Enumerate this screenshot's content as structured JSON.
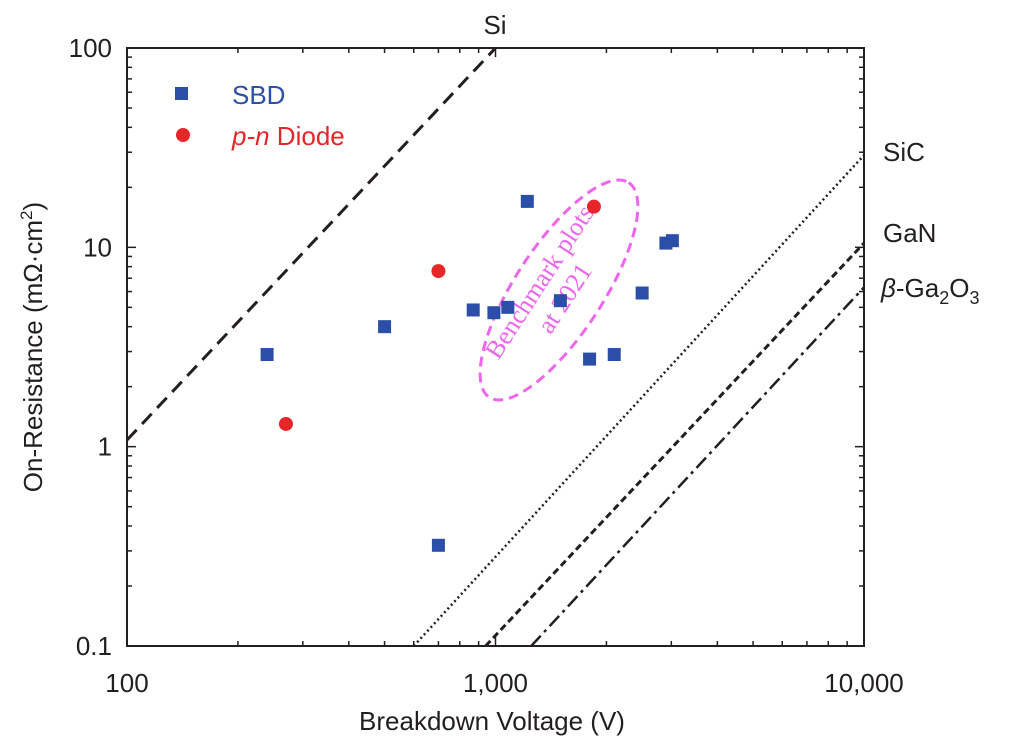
{
  "chart_data": {
    "type": "scatter",
    "xlabel": "Breakdown Voltage (V)",
    "ylabel": "On-Resistance (mΩ·cm²)",
    "ylabel_prefix": "On-Resistance (mΩ·cm",
    "ylabel_sup": "2",
    "ylabel_suffix": ")",
    "xscale": "log",
    "yscale": "log",
    "xlim": [
      100,
      10000
    ],
    "ylim": [
      0.1,
      100
    ],
    "x_ticks": [
      100,
      1000,
      10000
    ],
    "x_tick_labels": [
      "100",
      "1,000",
      "10,000"
    ],
    "y_ticks": [
      0.1,
      1,
      10,
      100
    ],
    "y_tick_labels": [
      "0.1",
      "1",
      "10",
      "100"
    ],
    "legend_position": "top-left",
    "series": [
      {
        "name": "SBD",
        "marker": "square",
        "color": "#2b4fa8",
        "points": [
          {
            "x": 240,
            "y": 2.9
          },
          {
            "x": 500,
            "y": 4.0
          },
          {
            "x": 700,
            "y": 0.32
          },
          {
            "x": 870,
            "y": 4.85
          },
          {
            "x": 990,
            "y": 4.7
          },
          {
            "x": 1080,
            "y": 5.0
          },
          {
            "x": 1220,
            "y": 17.0
          },
          {
            "x": 1500,
            "y": 5.4
          },
          {
            "x": 1800,
            "y": 2.75
          },
          {
            "x": 2100,
            "y": 2.9
          },
          {
            "x": 2500,
            "y": 5.9
          },
          {
            "x": 2900,
            "y": 10.5
          },
          {
            "x": 3020,
            "y": 10.8
          }
        ]
      },
      {
        "name": "p-n Diode",
        "name_italic": "p-n",
        "name_rest": " Diode",
        "marker": "circle",
        "color": "#e8262a",
        "points": [
          {
            "x": 270,
            "y": 1.3
          },
          {
            "x": 700,
            "y": 7.6
          },
          {
            "x": 1850,
            "y": 16.0
          }
        ]
      }
    ],
    "limit_lines": [
      {
        "name": "Si",
        "style": "dashed",
        "points": [
          {
            "x": 100,
            "y": 1.08
          },
          {
            "x": 1000,
            "y": 100
          }
        ]
      },
      {
        "name": "SiC",
        "style": "dotted",
        "points": [
          {
            "x": 600,
            "y": 0.1
          },
          {
            "x": 10000,
            "y": 29
          }
        ]
      },
      {
        "name": "GaN",
        "style": "short-dashed",
        "points": [
          {
            "x": 940,
            "y": 0.1
          },
          {
            "x": 10000,
            "y": 10.5
          }
        ]
      },
      {
        "name": "β-Ga₂O₃",
        "style": "dash-dot",
        "points": [
          {
            "x": 1250,
            "y": 0.1
          },
          {
            "x": 10000,
            "y": 6.3
          }
        ]
      }
    ],
    "line_labels": {
      "si": "Si",
      "sic": "SiC",
      "gan": "GaN",
      "ga2o3_beta": "β",
      "ga2o3_a": "-Ga",
      "ga2o3_sub1": "2",
      "ga2o3_b": "O",
      "ga2o3_sub2": "3"
    },
    "annotation": {
      "text_line1": "Benchmark plots",
      "text_line2": "at 2021",
      "color": "#ee66ee",
      "shape": "dashed ellipse"
    },
    "grid": false
  }
}
